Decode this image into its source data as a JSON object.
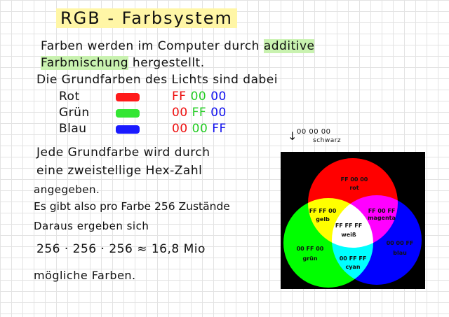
{
  "title": "RGB - Farbsystem",
  "intro": {
    "line1_pre": "Farben werden im Computer durch ",
    "line1_hl": "additive",
    "line2_hl": "Farbmischung",
    "line2_post": " hergestellt.",
    "line3": "Die Grundfarben des Lichts sind dabei"
  },
  "primaries": [
    {
      "name": "Rot",
      "color": "#ff1a1a",
      "hex": [
        "FF",
        "00",
        "00"
      ]
    },
    {
      "name": "Grün",
      "color": "#33e633",
      "hex": [
        "00",
        "FF",
        "00"
      ]
    },
    {
      "name": "Blau",
      "color": "#1a1aff",
      "hex": [
        "00",
        "00",
        "FF"
      ]
    }
  ],
  "hex_colors": [
    "#ee1111",
    "#22cc22",
    "#1111ee"
  ],
  "body": [
    "Jede Grundfarbe wird durch",
    "eine zweistellige Hex-Zahl",
    "angegeben.",
    "Es gibt also pro Farbe 256 Zustände",
    "Daraus ergeben sich",
    "256 · 256 · 256 ≈ 16,8 Mio",
    "mögliche Farben."
  ],
  "diagram": {
    "black": {
      "hex": "00 00 00",
      "name": "schwarz"
    },
    "red": {
      "hex": "FF 00 00",
      "name": "rot"
    },
    "yellow": {
      "hex": "FF FF 00",
      "name": "gelb"
    },
    "magenta": {
      "hex": "FF 00 FF",
      "name": "magenta"
    },
    "white": {
      "hex": "FF FF FF",
      "name": "weiß"
    },
    "green": {
      "hex": "00 FF 00",
      "name": "grün"
    },
    "cyan": {
      "hex": "00 FF FF",
      "name": "cyan"
    },
    "blue": {
      "hex": "00 00 FF",
      "name": "blau"
    }
  }
}
